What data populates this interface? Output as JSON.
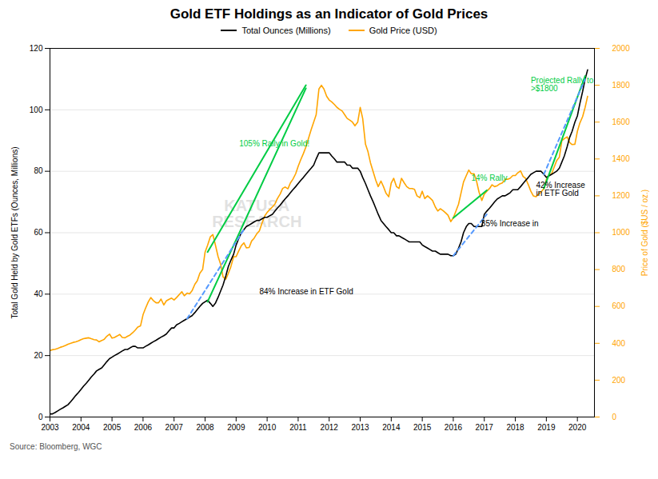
{
  "chart_data": {
    "type": "line",
    "title": "Gold ETF Holdings as an Indicator of Gold Prices",
    "ylabel": "Total Gold Held by Gold ETFs (Ounces, Millions)",
    "y2label": "Price of Gold ($US / oz.)",
    "source": "Source: Bloomberg, WGC",
    "watermark": "KATUSA\nRESEARCH",
    "xlim": [
      2003,
      2020.55
    ],
    "xticks": [
      2003,
      2004,
      2005,
      2006,
      2007,
      2008,
      2009,
      2010,
      2011,
      2012,
      2013,
      2014,
      2015,
      2016,
      2017,
      2018,
      2019,
      2020
    ],
    "ylim": [
      0,
      120
    ],
    "yticks": [
      0,
      20,
      40,
      60,
      80,
      100,
      120
    ],
    "y2lim": [
      0,
      2000
    ],
    "y2ticks": [
      0,
      200,
      400,
      600,
      800,
      1000,
      1200,
      1400,
      1600,
      1800,
      2000
    ],
    "grid": true,
    "legend": "top",
    "x": [
      2003.0,
      2003.08,
      2003.17,
      2003.25,
      2003.33,
      2003.42,
      2003.5,
      2003.58,
      2003.67,
      2003.75,
      2003.83,
      2003.92,
      2004.0,
      2004.08,
      2004.17,
      2004.25,
      2004.33,
      2004.42,
      2004.5,
      2004.58,
      2004.67,
      2004.75,
      2004.83,
      2004.92,
      2005.0,
      2005.08,
      2005.17,
      2005.25,
      2005.33,
      2005.42,
      2005.5,
      2005.58,
      2005.67,
      2005.75,
      2005.83,
      2005.92,
      2006.0,
      2006.08,
      2006.17,
      2006.25,
      2006.33,
      2006.42,
      2006.5,
      2006.58,
      2006.67,
      2006.75,
      2006.83,
      2006.92,
      2007.0,
      2007.08,
      2007.17,
      2007.25,
      2007.33,
      2007.42,
      2007.5,
      2007.58,
      2007.67,
      2007.75,
      2007.83,
      2007.92,
      2008.0,
      2008.08,
      2008.17,
      2008.25,
      2008.33,
      2008.42,
      2008.5,
      2008.58,
      2008.67,
      2008.75,
      2008.83,
      2008.92,
      2009.0,
      2009.08,
      2009.17,
      2009.25,
      2009.33,
      2009.42,
      2009.5,
      2009.58,
      2009.67,
      2009.75,
      2009.83,
      2009.92,
      2010.0,
      2010.08,
      2010.17,
      2010.25,
      2010.33,
      2010.42,
      2010.5,
      2010.58,
      2010.67,
      2010.75,
      2010.83,
      2010.92,
      2011.0,
      2011.08,
      2011.17,
      2011.25,
      2011.33,
      2011.42,
      2011.5,
      2011.58,
      2011.67,
      2011.75,
      2011.83,
      2011.92,
      2012.0,
      2012.08,
      2012.17,
      2012.25,
      2012.33,
      2012.42,
      2012.5,
      2012.58,
      2012.67,
      2012.75,
      2012.83,
      2012.92,
      2013.0,
      2013.08,
      2013.17,
      2013.25,
      2013.33,
      2013.42,
      2013.5,
      2013.58,
      2013.67,
      2013.75,
      2013.83,
      2013.92,
      2014.0,
      2014.08,
      2014.17,
      2014.25,
      2014.33,
      2014.42,
      2014.5,
      2014.58,
      2014.67,
      2014.75,
      2014.83,
      2014.92,
      2015.0,
      2015.08,
      2015.17,
      2015.25,
      2015.33,
      2015.42,
      2015.5,
      2015.58,
      2015.67,
      2015.75,
      2015.83,
      2015.92,
      2016.0,
      2016.08,
      2016.17,
      2016.25,
      2016.33,
      2016.42,
      2016.5,
      2016.58,
      2016.67,
      2016.75,
      2016.83,
      2016.92,
      2017.0,
      2017.08,
      2017.17,
      2017.25,
      2017.33,
      2017.42,
      2017.5,
      2017.58,
      2017.67,
      2017.75,
      2017.83,
      2017.92,
      2018.0,
      2018.08,
      2018.17,
      2018.25,
      2018.33,
      2018.42,
      2018.5,
      2018.58,
      2018.67,
      2018.75,
      2018.83,
      2018.92,
      2019.0,
      2019.08,
      2019.17,
      2019.25,
      2019.33,
      2019.42,
      2019.5,
      2019.58,
      2019.67,
      2019.75,
      2019.83,
      2019.92,
      2020.0,
      2020.08,
      2020.17,
      2020.25,
      2020.33
    ],
    "series": [
      {
        "name": "Total Ounces (Millions)",
        "color": "#000000",
        "values": [
          1,
          1,
          1.5,
          2,
          2.5,
          3,
          3.5,
          4,
          5,
          6,
          7,
          8,
          9,
          10,
          11,
          12,
          13,
          14,
          15,
          15.5,
          16,
          17,
          18,
          19,
          19.5,
          20,
          20.5,
          21,
          21.5,
          22,
          22,
          22.5,
          23,
          23,
          22.5,
          22.5,
          22.5,
          23,
          23.5,
          24,
          24.5,
          25,
          25.5,
          26,
          26.5,
          27,
          28,
          29,
          29,
          30,
          30.5,
          31,
          31.5,
          32,
          32.5,
          33,
          34,
          35,
          36,
          37,
          37.5,
          38,
          37,
          36,
          37,
          39,
          41,
          43,
          46,
          49,
          51,
          53,
          56,
          58,
          60,
          61,
          62,
          62.5,
          63,
          63.5,
          64,
          64,
          64.5,
          65,
          65,
          65.5,
          66,
          67,
          68,
          69,
          70,
          71,
          72,
          73,
          74,
          75,
          76,
          77,
          78,
          79,
          80,
          81,
          82,
          84,
          86,
          86,
          86,
          86,
          86,
          85,
          84,
          83,
          83,
          83,
          83,
          82,
          82,
          81,
          81,
          81,
          80,
          78,
          76,
          74,
          72,
          70,
          68,
          66,
          64,
          63,
          62,
          61,
          60,
          60,
          59,
          59,
          58.5,
          58,
          57.5,
          57,
          57,
          57,
          57,
          57,
          56,
          55.5,
          55,
          54.5,
          54,
          54,
          53.5,
          53,
          53,
          53,
          53,
          52.5,
          52.5,
          53,
          55,
          57,
          60,
          62,
          63,
          63,
          62,
          62,
          62,
          62,
          66,
          67,
          68,
          69,
          70,
          71,
          71.5,
          72,
          72,
          72.5,
          73,
          74,
          74,
          74,
          75,
          76,
          77,
          78,
          79,
          79.5,
          80,
          80,
          80,
          79,
          78,
          78.5,
          79,
          79.5,
          80,
          81,
          83,
          85,
          88,
          91,
          93,
          96,
          98,
          102,
          106,
          110,
          113
        ]
      },
      {
        "name": "Gold Price (USD)",
        "color": "#FFA500",
        "axis": "y2",
        "values": [
          360,
          365,
          368,
          372,
          378,
          383,
          388,
          395,
          400,
          405,
          408,
          413,
          420,
          425,
          428,
          430,
          425,
          420,
          418,
          408,
          415,
          422,
          438,
          450,
          428,
          432,
          440,
          448,
          432,
          430,
          438,
          445,
          458,
          472,
          488,
          495,
          555,
          590,
          625,
          648,
          632,
          620,
          620,
          640,
          608,
          630,
          638,
          645,
          635,
          648,
          665,
          680,
          658,
          672,
          668,
          685,
          720,
          740,
          780,
          800,
          895,
          932,
          978,
          990,
          935,
          870,
          830,
          760,
          748,
          780,
          815,
          870,
          870,
          900,
          930,
          945,
          918,
          920,
          955,
          970,
          995,
          1010,
          1050,
          1090,
          1110,
          1125,
          1140,
          1155,
          1185,
          1210,
          1240,
          1248,
          1238,
          1270,
          1290,
          1320,
          1360,
          1395,
          1430,
          1465,
          1510,
          1560,
          1600,
          1640,
          1780,
          1800,
          1780,
          1740,
          1720,
          1710,
          1695,
          1680,
          1670,
          1660,
          1640,
          1620,
          1610,
          1600,
          1580,
          1600,
          1680,
          1620,
          1480,
          1440,
          1380,
          1330,
          1285,
          1250,
          1280,
          1250,
          1215,
          1195,
          1270,
          1295,
          1250,
          1240,
          1295,
          1270,
          1250,
          1240,
          1240,
          1235,
          1200,
          1190,
          1225,
          1185,
          1200,
          1188,
          1175,
          1140,
          1118,
          1130,
          1120,
          1108,
          1095,
          1060,
          1080,
          1115,
          1155,
          1215,
          1275,
          1310,
          1340,
          1320,
          1320,
          1280,
          1220,
          1175,
          1210,
          1225,
          1240,
          1260,
          1250,
          1255,
          1265,
          1270,
          1290,
          1290,
          1295,
          1310,
          1310,
          1325,
          1335,
          1305,
          1295,
          1260,
          1225,
          1200,
          1195,
          1210,
          1220,
          1240,
          1290,
          1310,
          1320,
          1355,
          1390,
          1410,
          1500,
          1510,
          1520,
          1490,
          1478,
          1480,
          1550,
          1595,
          1630,
          1680,
          1740
        ]
      },
      {
        "x": [
          2008.08,
          2011.25
        ],
        "values": [
          37.5,
          107
        ],
        "color": "#00CC44"
      },
      {
        "x": [
          2008.08,
          2011.25
        ],
        "values": [
          895,
          1800
        ],
        "color": "#00CC44",
        "axis": "y2"
      },
      {
        "x": [
          2016.0,
          2017.08
        ],
        "values": [
          1080,
          1230
        ],
        "color": "#00CC44",
        "axis": "y2"
      },
      {
        "x": [
          2018.92,
          2020.25
        ],
        "values": [
          1240,
          1850
        ],
        "color": "#00CC44",
        "axis": "y2"
      },
      {
        "x": [
          2007.42,
          2009.25
        ],
        "values": [
          32,
          61
        ],
        "color": "#5599FF",
        "line_style": "dashed"
      },
      {
        "x": [
          2016.0,
          2017.08
        ],
        "values": [
          52.5,
          66
        ],
        "color": "#5599FF",
        "line_style": "dashed"
      },
      {
        "x": [
          2018.92,
          2020.25
        ],
        "values": [
          79,
          110
        ],
        "color": "#5599FF",
        "line_style": "dashed"
      }
    ],
    "annotations": [
      {
        "text": "105% Rally in Gold!",
        "x": 2009.1,
        "y": 88,
        "color": "#00CC44"
      },
      {
        "text": "84% Increase in ETF Gold",
        "x": 2009.75,
        "y": 40,
        "color": "#000000"
      },
      {
        "text": "35% Increase in",
        "x": 2016.9,
        "y": 62,
        "color": "#000000"
      },
      {
        "text": "14% Rally",
        "x": 2016.58,
        "y": 77,
        "color": "#00CC44"
      },
      {
        "text": "42% Increase\nin ETF Gold",
        "x": 2018.67,
        "y": 72,
        "color": "#000000"
      },
      {
        "text": "Projected Rally to\n>$1800",
        "x": 2018.5,
        "y": 106,
        "color": "#00CC44"
      }
    ]
  }
}
